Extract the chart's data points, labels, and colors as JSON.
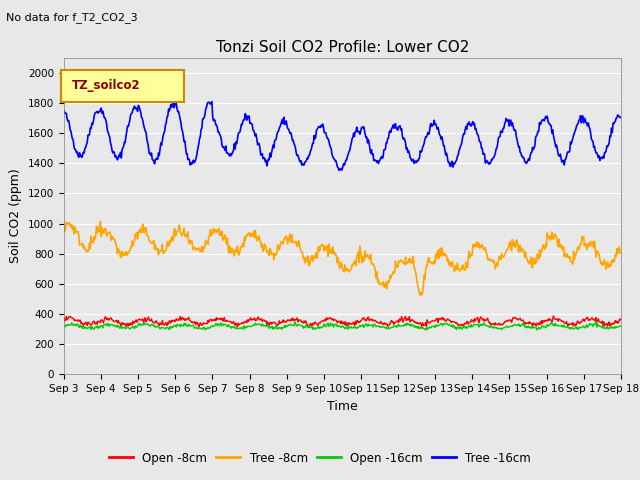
{
  "title": "Tonzi Soil CO2 Profile: Lower CO2",
  "top_left_text": "No data for f_T2_CO2_3",
  "legend_label": "TZ_soilco2",
  "xlabel": "Time",
  "ylabel": "Soil CO2 (ppm)",
  "ylim": [
    0,
    2100
  ],
  "yticks": [
    0,
    200,
    400,
    600,
    800,
    1000,
    1200,
    1400,
    1600,
    1800,
    2000
  ],
  "x_labels": [
    "Sep 3",
    "Sep 4",
    "Sep 5",
    "Sep 6",
    "Sep 7",
    "Sep 8",
    "Sep 9",
    "Sep 10",
    "Sep 11",
    "Sep 12",
    "Sep 13",
    "Sep 14",
    "Sep 15",
    "Sep 16",
    "Sep 17",
    "Sep 18"
  ],
  "series": {
    "open_8cm": {
      "color": "#ff0000",
      "label": "Open -8cm",
      "linewidth": 1.0
    },
    "tree_8cm": {
      "color": "#ffa500",
      "label": "Tree -8cm",
      "linewidth": 1.2
    },
    "open_16cm": {
      "color": "#00cc00",
      "label": "Open -16cm",
      "linewidth": 1.0
    },
    "tree_16cm": {
      "color": "#0000ff",
      "label": "Tree -16cm",
      "linewidth": 1.2
    }
  },
  "bg_color": "#e8e8e8",
  "plot_bg_color": "#e8e8e8",
  "legend_box_color": "#ffff99",
  "legend_box_edge": "#cc8800",
  "title_fontsize": 11,
  "axis_label_fontsize": 9,
  "tick_fontsize": 7.5,
  "legend_fontsize": 8.5
}
